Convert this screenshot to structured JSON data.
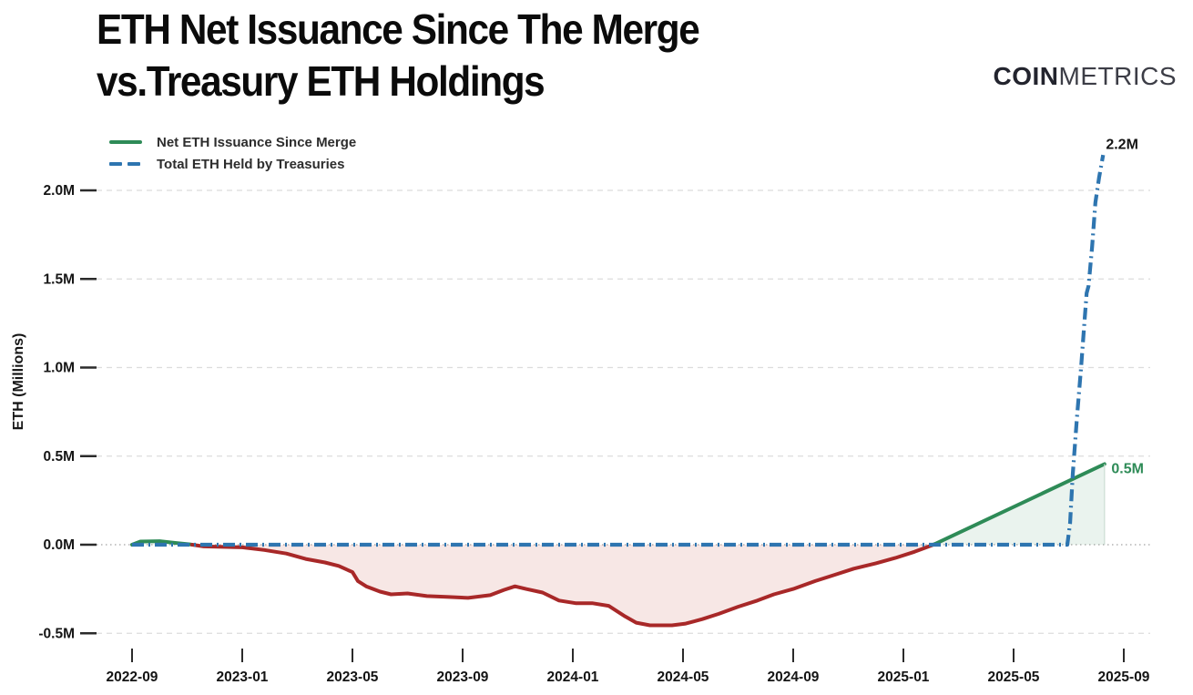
{
  "header": {
    "title_line1": "ETH Net Issuance Since The Merge",
    "title_line2": "vs.Treasury ETH Holdings",
    "logo_bold": "COIN",
    "logo_light": "METRICS"
  },
  "legend": [
    {
      "label": "Net ETH Issuance Since Merge",
      "color": "#2e8b57",
      "style": "solid"
    },
    {
      "label": "Total ETH Held by Treasuries",
      "color": "#2e75b0",
      "style": "dashed"
    }
  ],
  "chart_data": {
    "type": "line",
    "title": "ETH Net Issuance Since The Merge vs.Treasury ETH Holdings",
    "xlabel": "",
    "ylabel": "ETH (Millions)",
    "x_unit": "months since 2022-09",
    "ylim": [
      -0.62,
      2.35
    ],
    "grid": "horizontal-dashed",
    "legend_position": "top-left",
    "x_ticks": [
      {
        "t": 0,
        "label": "2022-09"
      },
      {
        "t": 4,
        "label": "2023-01"
      },
      {
        "t": 8,
        "label": "2023-05"
      },
      {
        "t": 12,
        "label": "2023-09"
      },
      {
        "t": 16,
        "label": "2024-01"
      },
      {
        "t": 20,
        "label": "2024-05"
      },
      {
        "t": 24,
        "label": "2024-09"
      },
      {
        "t": 28,
        "label": "2025-01"
      },
      {
        "t": 32,
        "label": "2025-05"
      },
      {
        "t": 36,
        "label": "2025-09"
      }
    ],
    "y_ticks": [
      {
        "v": -0.5,
        "label": "-0.5M"
      },
      {
        "v": 0.0,
        "label": "0.0M"
      },
      {
        "v": 0.5,
        "label": "0.5M"
      },
      {
        "v": 1.0,
        "label": "1.0M"
      },
      {
        "v": 1.5,
        "label": "1.5M"
      },
      {
        "v": 2.0,
        "label": "2.0M"
      }
    ],
    "series": [
      {
        "name": "Net ETH Issuance Since Merge",
        "style": "sign-colored-line",
        "color_positive": "#2e8b57",
        "color_negative": "#a82828",
        "fill_positive": "rgba(46,139,87,0.10)",
        "fill_negative": "rgba(192,57,43,0.12)",
        "points": [
          [
            0,
            0.0
          ],
          [
            0.3,
            0.018
          ],
          [
            1.0,
            0.02
          ],
          [
            1.6,
            0.01
          ],
          [
            2.1,
            0.002
          ],
          [
            2.6,
            -0.01
          ],
          [
            4.0,
            -0.015
          ],
          [
            4.8,
            -0.03
          ],
          [
            5.6,
            -0.05
          ],
          [
            6.3,
            -0.08
          ],
          [
            7.0,
            -0.1
          ],
          [
            7.5,
            -0.12
          ],
          [
            8.0,
            -0.155
          ],
          [
            8.2,
            -0.205
          ],
          [
            8.5,
            -0.235
          ],
          [
            9.0,
            -0.265
          ],
          [
            9.4,
            -0.28
          ],
          [
            10.0,
            -0.275
          ],
          [
            10.7,
            -0.29
          ],
          [
            11.5,
            -0.295
          ],
          [
            12.2,
            -0.3
          ],
          [
            13.0,
            -0.285
          ],
          [
            13.5,
            -0.255
          ],
          [
            13.9,
            -0.235
          ],
          [
            14.3,
            -0.25
          ],
          [
            14.9,
            -0.27
          ],
          [
            15.5,
            -0.315
          ],
          [
            16.1,
            -0.33
          ],
          [
            16.7,
            -0.33
          ],
          [
            17.3,
            -0.345
          ],
          [
            17.9,
            -0.405
          ],
          [
            18.3,
            -0.44
          ],
          [
            18.8,
            -0.455
          ],
          [
            19.6,
            -0.455
          ],
          [
            20.1,
            -0.445
          ],
          [
            20.7,
            -0.42
          ],
          [
            21.3,
            -0.39
          ],
          [
            22.0,
            -0.35
          ],
          [
            22.7,
            -0.315
          ],
          [
            23.3,
            -0.28
          ],
          [
            24.0,
            -0.25
          ],
          [
            24.8,
            -0.205
          ],
          [
            25.5,
            -0.17
          ],
          [
            26.2,
            -0.135
          ],
          [
            27.0,
            -0.105
          ],
          [
            27.7,
            -0.075
          ],
          [
            28.4,
            -0.04
          ],
          [
            29.0,
            -0.005
          ],
          [
            29.2,
            0.008
          ],
          [
            35.3,
            0.455
          ]
        ]
      },
      {
        "name": "Total ETH Held by Treasuries",
        "style": "dashed-line",
        "color": "#2e75b0",
        "points": [
          [
            0,
            0.0
          ],
          [
            30.0,
            0.0
          ],
          [
            33.95,
            0.0
          ],
          [
            34.05,
            0.12
          ],
          [
            34.15,
            0.4
          ],
          [
            34.3,
            0.72
          ],
          [
            34.45,
            1.0
          ],
          [
            34.57,
            1.25
          ],
          [
            34.65,
            1.42
          ],
          [
            34.72,
            1.46
          ],
          [
            34.85,
            1.68
          ],
          [
            34.97,
            1.93
          ],
          [
            35.1,
            2.07
          ],
          [
            35.25,
            2.2
          ]
        ]
      }
    ],
    "annotations": [
      {
        "text": "2.2M",
        "t": 35.35,
        "v": 2.26,
        "color": "#141414"
      },
      {
        "text": "0.5M",
        "t": 35.55,
        "v": 0.43,
        "color": "#2e8b57"
      }
    ]
  }
}
